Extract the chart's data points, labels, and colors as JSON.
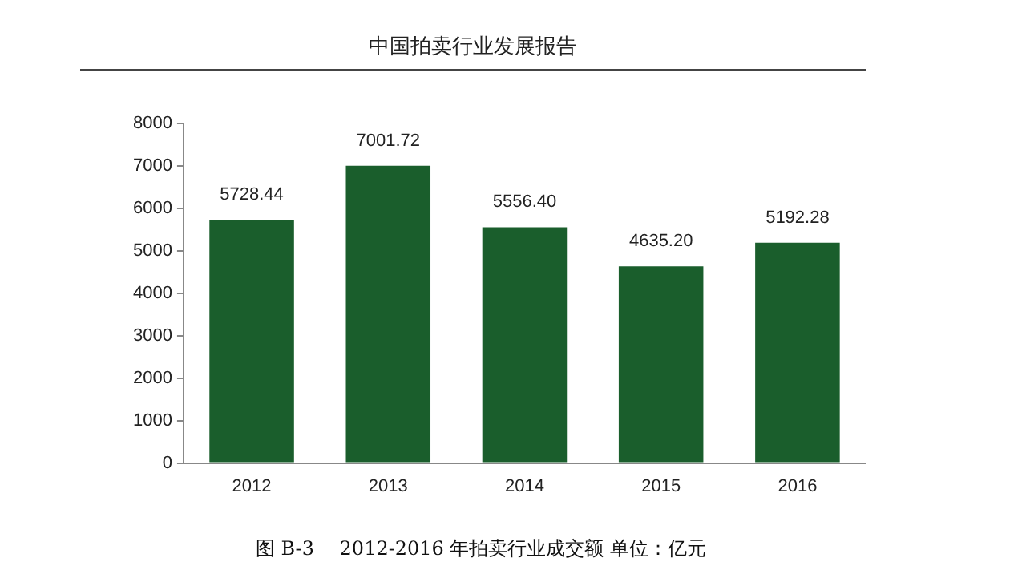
{
  "chart_data": {
    "type": "bar",
    "title": "图 B-3　 2012-2016 年拍卖行业成交额 单位：亿元",
    "annotations": [
      "中国拍卖行业发展报告"
    ],
    "categories": [
      "2012",
      "2013",
      "2014",
      "2015",
      "2016"
    ],
    "values": [
      5728.44,
      7001.72,
      5556.4,
      4635.2,
      5192.28
    ],
    "value_labels": [
      "5728.44",
      "7001.72",
      "5556.40",
      "4635.20",
      "5192.28"
    ],
    "color": "#1a5e2c",
    "ylim": [
      0,
      8000
    ],
    "yticks": [
      0,
      1000,
      2000,
      3000,
      4000,
      5000,
      6000,
      7000,
      8000
    ],
    "grid": false,
    "legend": false
  }
}
